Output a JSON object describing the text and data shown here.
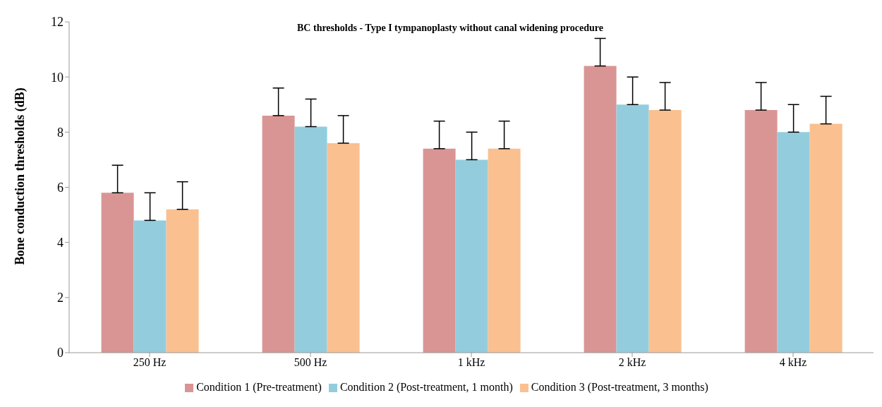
{
  "chart_data": {
    "type": "bar",
    "title": "BC thresholds - Type I tympanoplasty without canal widening procedure",
    "ylabel": "Bone conduction thresholds (dB)",
    "categories": [
      "250 Hz",
      "500 Hz",
      "1 kHz",
      "2 kHz",
      "4 kHz"
    ],
    "series": [
      {
        "name": "Condition 1 (Pre-treatment)",
        "color": "#d99594",
        "values": [
          5.8,
          8.6,
          7.4,
          10.4,
          8.8
        ],
        "errors": [
          [
            5.8,
            6.8
          ],
          [
            8.6,
            9.6
          ],
          [
            7.4,
            8.4
          ],
          [
            10.4,
            11.4
          ],
          [
            8.8,
            9.8
          ]
        ]
      },
      {
        "name": "Condition 2 (Post-treatment, 1 month)",
        "color": "#93cddd",
        "values": [
          4.8,
          8.2,
          7.0,
          9.0,
          8.0
        ],
        "errors": [
          [
            4.8,
            5.8
          ],
          [
            8.2,
            9.2
          ],
          [
            7.0,
            8.0
          ],
          [
            9.0,
            10.0
          ],
          [
            8.0,
            9.0
          ]
        ]
      },
      {
        "name": "Condition 3 (Post-treatment, 3 months)",
        "color": "#fac090",
        "values": [
          5.2,
          7.6,
          7.4,
          8.8,
          8.3
        ],
        "errors": [
          [
            5.2,
            6.2
          ],
          [
            7.6,
            8.6
          ],
          [
            7.4,
            8.4
          ],
          [
            8.8,
            9.8
          ],
          [
            8.3,
            9.3
          ]
        ]
      }
    ],
    "ylim": [
      0,
      12
    ],
    "yticks": [
      0,
      2,
      4,
      6,
      8,
      10,
      12
    ],
    "grid": false,
    "legend": "bottom"
  }
}
